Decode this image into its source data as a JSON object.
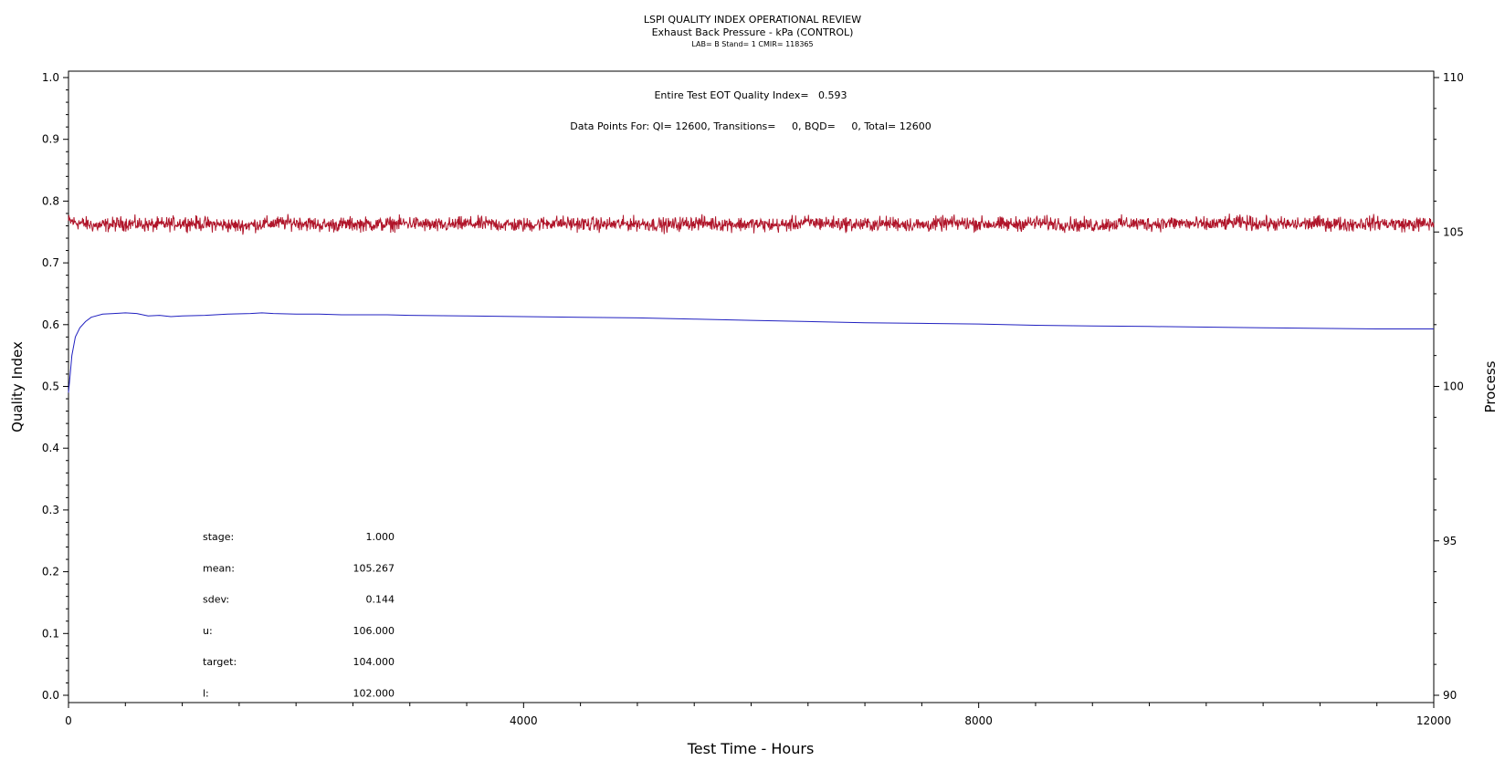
{
  "header": {
    "title": "LSPI QUALITY INDEX OPERATIONAL REVIEW",
    "subtitle": "Exhaust Back Pressure - kPa (CONTROL)",
    "subsubtitle": "LAB= B Stand= 1 CMIR= 118365"
  },
  "annotations": {
    "eot": "Entire Test EOT Quality Index=   0.593",
    "points": "Data Points For: QI= 12600, Transitions=     0, BQD=     0, Total= 12600"
  },
  "stats": [
    {
      "label": "stage:",
      "value": "1.000"
    },
    {
      "label": "mean:",
      "value": "105.267"
    },
    {
      "label": "sdev:",
      "value": "0.144"
    },
    {
      "label": "u:",
      "value": "106.000"
    },
    {
      "label": "target:",
      "value": "104.000"
    },
    {
      "label": "l:",
      "value": "102.000"
    }
  ],
  "colors": {
    "process": "#b0152a",
    "quality_index": "#2020c0"
  },
  "chart_data": {
    "type": "line",
    "xlabel": "Test Time - Hours",
    "ylabel": "Quality Index",
    "y2label": "Process",
    "xlim": [
      0,
      12000
    ],
    "ylim": [
      0.0,
      1.0
    ],
    "y2lim": [
      90,
      110
    ],
    "x_ticks": [
      "0",
      "4000",
      "8000",
      "12000"
    ],
    "y_ticks": [
      "0.0",
      "0.1",
      "0.2",
      "0.3",
      "0.4",
      "0.5",
      "0.6",
      "0.7",
      "0.8",
      "0.9",
      "1.0"
    ],
    "y2_ticks": [
      "90",
      "95",
      "100",
      "105",
      "110"
    ],
    "series": [
      {
        "axis": "left",
        "x": [
          0,
          15,
          30,
          60,
          100,
          150,
          200,
          300,
          400,
          500,
          600,
          700,
          800,
          900,
          1000,
          1200,
          1400,
          1600,
          1700,
          1800,
          2000,
          2200,
          2400,
          2600,
          2800,
          3000,
          3500,
          4000,
          4500,
          5000,
          5500,
          6000,
          6500,
          7000,
          7500,
          8000,
          8500,
          9000,
          9500,
          10000,
          10500,
          11000,
          11500,
          12000
        ],
        "values": [
          0.49,
          0.52,
          0.55,
          0.58,
          0.595,
          0.605,
          0.612,
          0.617,
          0.618,
          0.619,
          0.618,
          0.614,
          0.615,
          0.613,
          0.614,
          0.615,
          0.617,
          0.618,
          0.619,
          0.618,
          0.617,
          0.617,
          0.616,
          0.616,
          0.616,
          0.615,
          0.614,
          0.613,
          0.612,
          0.611,
          0.609,
          0.607,
          0.605,
          0.603,
          0.602,
          0.601,
          0.599,
          0.598,
          0.597,
          0.596,
          0.595,
          0.594,
          0.593,
          0.593
        ]
      },
      {
        "axis": "right",
        "mean": 105.267,
        "sdev": 0.144,
        "x": [
          0,
          250,
          500,
          750,
          1000,
          1250,
          1500,
          1750,
          2000,
          2250,
          2500,
          2750,
          3000,
          3250,
          3500,
          3750,
          4000,
          4250,
          4500,
          4750,
          5000,
          5250,
          5500,
          5750,
          6000,
          6250,
          6500,
          6750,
          7000,
          7250,
          7500,
          7750,
          8000,
          8250,
          8500,
          8750,
          9000,
          9250,
          9500,
          9750,
          10000,
          10250,
          10500,
          10750,
          11000,
          11250,
          11500,
          11750,
          12000
        ],
        "values": [
          105.35,
          105.2,
          105.28,
          105.22,
          105.3,
          105.25,
          105.2,
          105.27,
          105.31,
          105.22,
          105.26,
          105.24,
          105.29,
          105.2,
          105.27,
          105.25,
          105.22,
          105.3,
          105.26,
          105.24,
          105.28,
          105.22,
          105.3,
          105.26,
          105.25,
          105.22,
          105.31,
          105.27,
          105.24,
          105.28,
          105.22,
          105.29,
          105.27,
          105.24,
          105.3,
          105.25,
          105.22,
          105.28,
          105.26,
          105.29,
          105.23,
          105.31,
          105.27,
          105.24,
          105.29,
          105.25,
          105.3,
          105.24,
          105.27
        ]
      }
    ]
  }
}
